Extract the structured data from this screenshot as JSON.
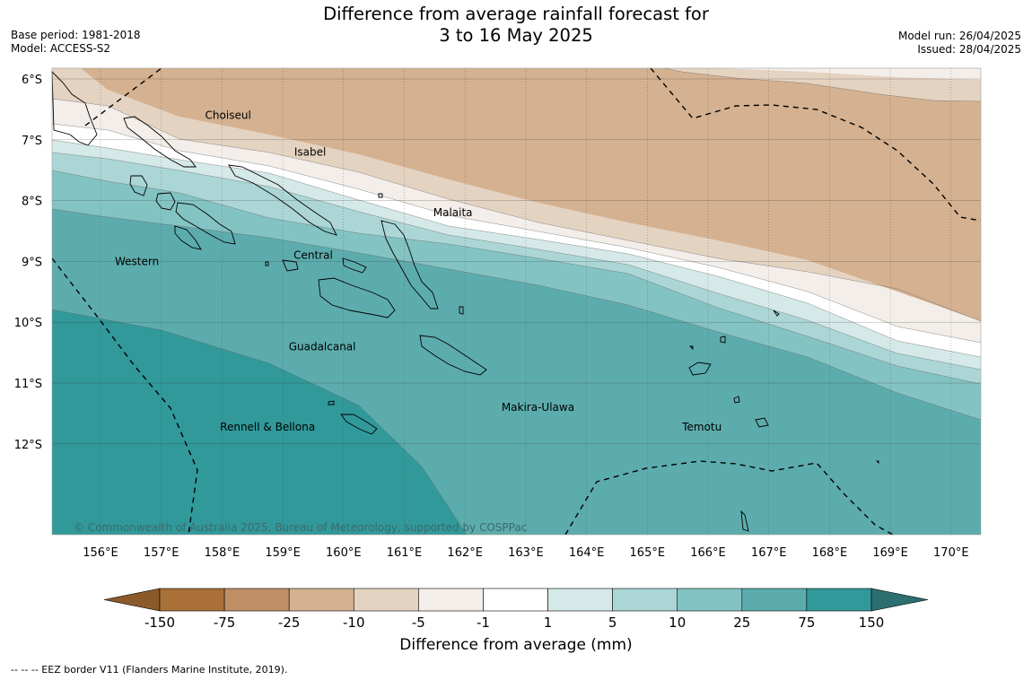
{
  "title_line1": "Difference from average rainfall forecast for",
  "title_line2": "3 to 16 May 2025",
  "base_period": "Base period: 1981-2018",
  "model": "Model: ACCESS-S2",
  "model_run": "Model run: 26/04/2025",
  "issued": "Issued: 28/04/2025",
  "copyright": "© Commonwealth of Australia 2025, Bureau of Meteorology, supported by COSPPac",
  "lat_labels": [
    "6°S",
    "7°S",
    "8°S",
    "9°S",
    "10°S",
    "11°S",
    "12°S"
  ],
  "lon_labels": [
    "156°E",
    "157°E",
    "158°E",
    "159°E",
    "160°E",
    "161°E",
    "162°E",
    "163°E",
    "164°E",
    "165°E",
    "166°E",
    "167°E",
    "168°E",
    "169°E",
    "170°E"
  ],
  "regions": [
    {
      "name": "Choiseul",
      "lon": 158.1,
      "lat": -6.6
    },
    {
      "name": "Isabel",
      "lon": 159.45,
      "lat": -7.2
    },
    {
      "name": "Malaita",
      "lon": 161.8,
      "lat": -8.2
    },
    {
      "name": "Central",
      "lon": 159.5,
      "lat": -8.9
    },
    {
      "name": "Western",
      "lon": 156.6,
      "lat": -9.0
    },
    {
      "name": "Guadalcanal",
      "lon": 159.65,
      "lat": -10.4
    },
    {
      "name": "Makira-Ulawa",
      "lon": 163.2,
      "lat": -11.4
    },
    {
      "name": "Rennell & Bellona",
      "lon": 158.75,
      "lat": -11.72
    },
    {
      "name": "Temotu",
      "lon": 165.9,
      "lat": -11.72
    }
  ],
  "colorbar": {
    "title": "Difference from average (mm)",
    "tick_labels": [
      "-150",
      "-75",
      "-25",
      "-10",
      "-5",
      "-1",
      "1",
      "5",
      "10",
      "25",
      "75",
      "150"
    ],
    "colors": [
      "#8b5a2b",
      "#a97138",
      "#c08f65",
      "#d4b190",
      "#e5d3c2",
      "#f3eee9",
      "#ffffff",
      "#d4e9e8",
      "#acd6d6",
      "#84c3c3",
      "#5dacad",
      "#31999a",
      "#2d6e70"
    ]
  },
  "footer": "--  --  -- EEZ border V11 (Flanders Marine Institute, 2019)."
}
